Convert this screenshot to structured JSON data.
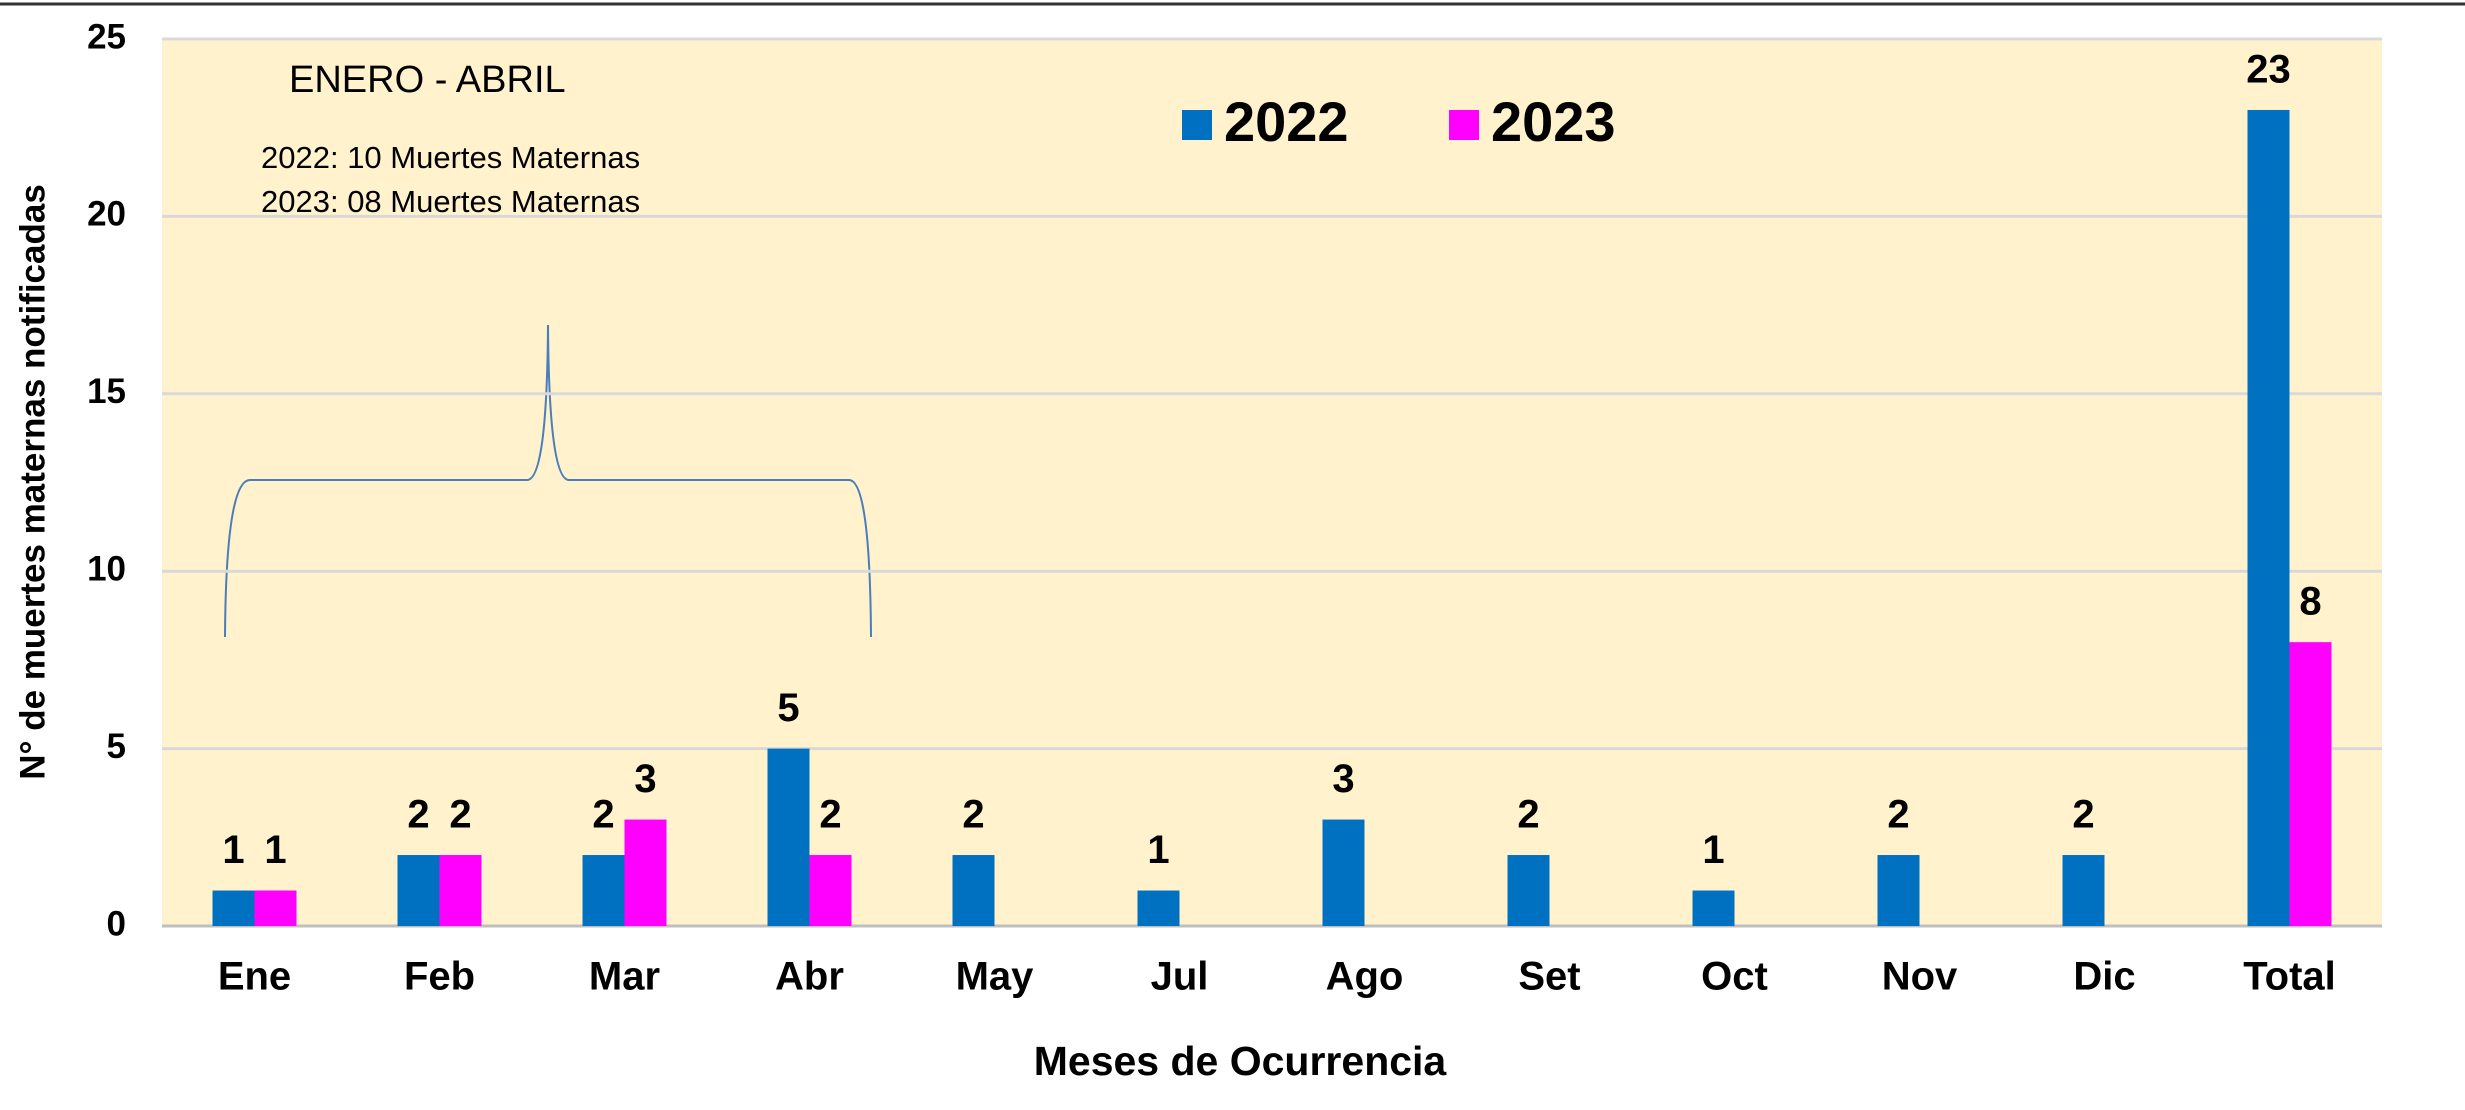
{
  "chart_data": {
    "type": "bar",
    "categories": [
      "Ene",
      "Feb",
      "Mar",
      "Abr",
      "May",
      "Jul",
      "Ago",
      "Set",
      "Oct",
      "Nov",
      "Dic",
      "Total"
    ],
    "series": [
      {
        "name": "2022",
        "color": "#0070c0",
        "values": [
          1,
          2,
          2,
          5,
          2,
          1,
          3,
          2,
          1,
          2,
          2,
          23
        ]
      },
      {
        "name": "2023",
        "color": "#ff00ff",
        "values": [
          1,
          2,
          3,
          2,
          null,
          null,
          null,
          null,
          null,
          null,
          null,
          8
        ]
      }
    ],
    "ylim": [
      0,
      25
    ],
    "yticks": [
      0,
      5,
      10,
      15,
      20,
      25
    ],
    "grid": true,
    "y_label": "N° de muertes maternas notificadas",
    "x_label": "Meses de Ocurrencia",
    "annotations": [
      "ENERO - ABRIL",
      "2022: 10 Muertes Maternas",
      "2023: 08 Muertes Maternas"
    ],
    "legend_position": "top"
  }
}
